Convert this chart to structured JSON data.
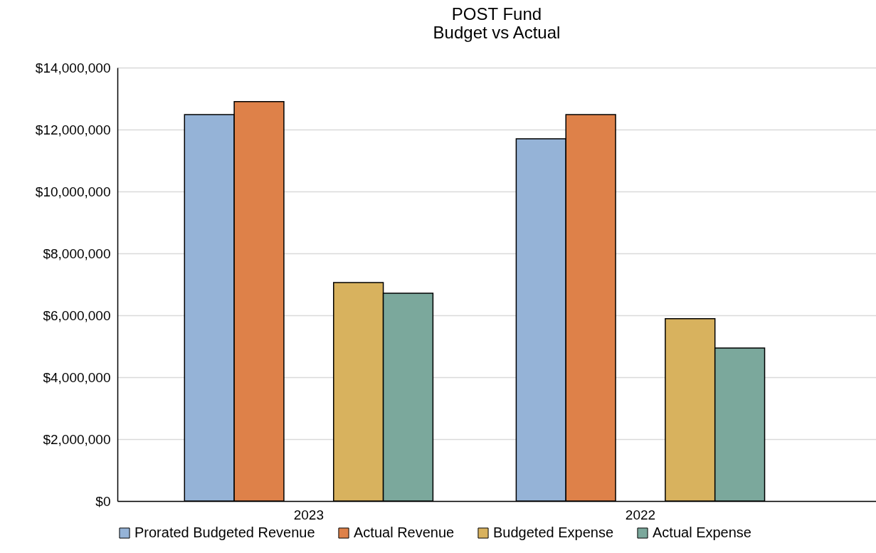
{
  "chart_data": {
    "type": "bar",
    "title": "POST Fund",
    "subtitle": "Budget vs Actual",
    "categories": [
      "2023",
      "2022"
    ],
    "series": [
      {
        "name": "Prorated Budgeted Revenue",
        "color": "#95b3d7",
        "values": [
          12480000,
          11700000
        ]
      },
      {
        "name": "Actual Revenue",
        "color": "#de8149",
        "values": [
          12900000,
          12480000
        ]
      },
      {
        "name": "Budgeted Expense",
        "color": "#d8b25e",
        "values": [
          7060000,
          5890000
        ]
      },
      {
        "name": "Actual Expense",
        "color": "#7ba89c",
        "values": [
          6710000,
          4940000
        ]
      }
    ],
    "ylim": [
      0,
      14000000
    ],
    "yticks": [
      {
        "value": 0,
        "label": "$0"
      },
      {
        "value": 2000000,
        "label": "$2,000,000"
      },
      {
        "value": 4000000,
        "label": "$4,000,000"
      },
      {
        "value": 6000000,
        "label": "$6,000,000"
      },
      {
        "value": 8000000,
        "label": "$8,000,000"
      },
      {
        "value": 10000000,
        "label": "$10,000,000"
      },
      {
        "value": 12000000,
        "label": "$12,000,000"
      },
      {
        "value": 14000000,
        "label": "$14,000,000"
      }
    ],
    "grid": "y",
    "legend": "bottom"
  }
}
